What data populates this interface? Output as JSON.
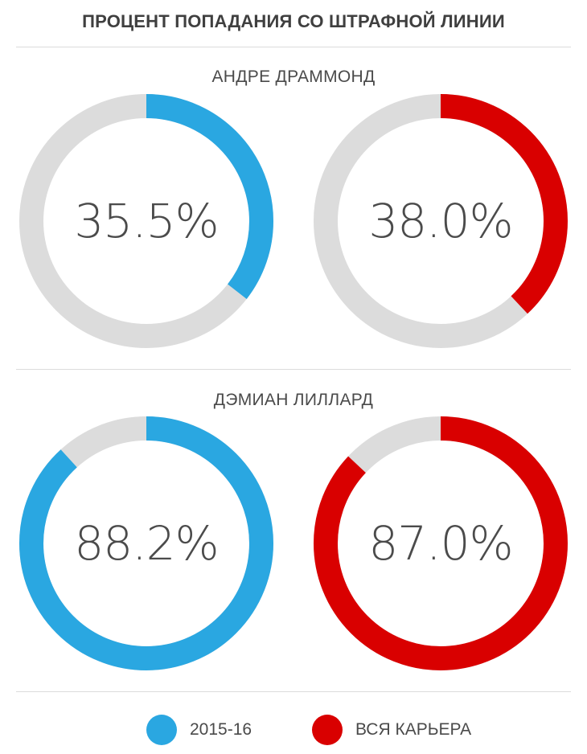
{
  "chart_data": {
    "type": "donut",
    "title": "ПРОЦЕНТ ПОПАДАНИЯ СО ШТРАФНОЙ ЛИНИИ",
    "legend": [
      {
        "name": "2015-16",
        "color": "#2aa7e1"
      },
      {
        "name": "ВСЯ КАРЬЕРА",
        "color": "#d90000"
      }
    ],
    "track_color": "#dcdcdc",
    "players": [
      {
        "name": "АНДРЕ ДРАММОНД",
        "values": [
          {
            "series": "2015-16",
            "value": 35.5,
            "label": "35.5%"
          },
          {
            "series": "ВСЯ КАРЬЕРА",
            "value": 38.0,
            "label": "38.0%"
          }
        ]
      },
      {
        "name": "ДЭМИАН ЛИЛЛАРД",
        "values": [
          {
            "series": "2015-16",
            "value": 88.2,
            "label": "88.2%"
          },
          {
            "series": "ВСЯ КАРЬЕРА",
            "value": 87.0,
            "label": "87.0%"
          }
        ]
      }
    ]
  }
}
